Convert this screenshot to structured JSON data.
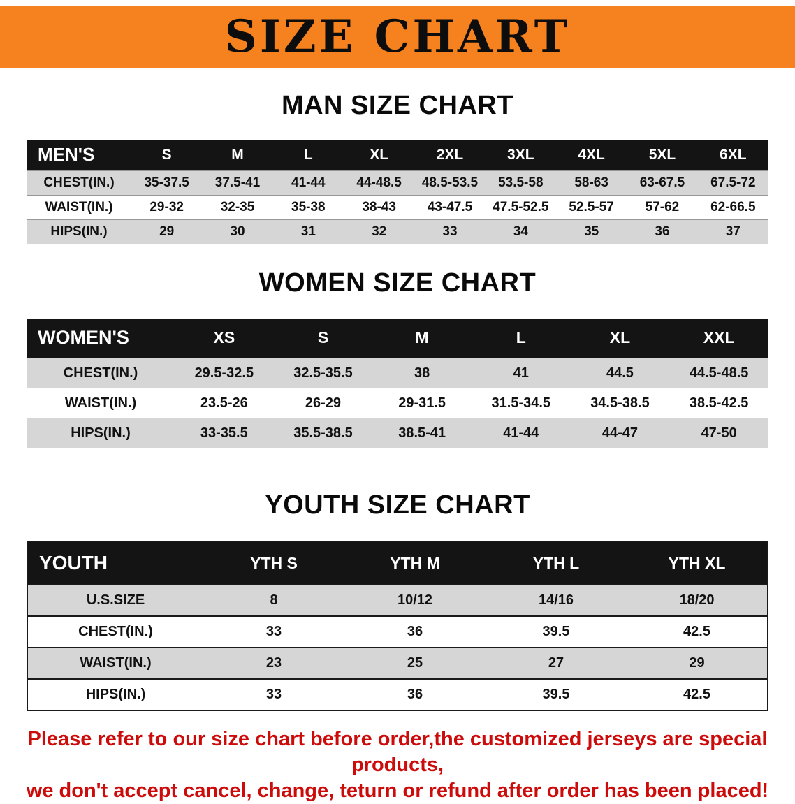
{
  "banner": {
    "title": "SIZE CHART",
    "background_color": "#F5821F"
  },
  "sections": [
    {
      "id": "men",
      "heading": "MAN SIZE CHART",
      "table": {
        "header": [
          "MEN'S",
          "S",
          "M",
          "L",
          "XL",
          "2XL",
          "3XL",
          "4XL",
          "5XL",
          "6XL"
        ],
        "rows": [
          [
            "CHEST(IN.)",
            "35-37.5",
            "37.5-41",
            "41-44",
            "44-48.5",
            "48.5-53.5",
            "53.5-58",
            "58-63",
            "63-67.5",
            "67.5-72"
          ],
          [
            "WAIST(IN.)",
            "29-32",
            "32-35",
            "35-38",
            "38-43",
            "43-47.5",
            "47.5-52.5",
            "52.5-57",
            "57-62",
            "62-66.5"
          ],
          [
            "HIPS(IN.)",
            "29",
            "30",
            "31",
            "32",
            "33",
            "34",
            "35",
            "36",
            "37"
          ]
        ]
      }
    },
    {
      "id": "women",
      "heading": "WOMEN SIZE CHART",
      "table": {
        "header": [
          "WOMEN'S",
          "XS",
          "S",
          "M",
          "L",
          "XL",
          "XXL"
        ],
        "rows": [
          [
            "CHEST(IN.)",
            "29.5-32.5",
            "32.5-35.5",
            "38",
            "41",
            "44.5",
            "44.5-48.5"
          ],
          [
            "WAIST(IN.)",
            "23.5-26",
            "26-29",
            "29-31.5",
            "31.5-34.5",
            "34.5-38.5",
            "38.5-42.5"
          ],
          [
            "HIPS(IN.)",
            "33-35.5",
            "35.5-38.5",
            "38.5-41",
            "41-44",
            "44-47",
            "47-50"
          ]
        ]
      }
    },
    {
      "id": "youth",
      "heading": "YOUTH SIZE CHART",
      "table": {
        "header": [
          "YOUTH",
          "YTH S",
          "YTH M",
          "YTH L",
          "YTH XL"
        ],
        "rows": [
          [
            "U.S.SIZE",
            "8",
            "10/12",
            "14/16",
            "18/20"
          ],
          [
            "CHEST(IN.)",
            "33",
            "36",
            "39.5",
            "42.5"
          ],
          [
            "WAIST(IN.)",
            "23",
            "25",
            "27",
            "29"
          ],
          [
            "HIPS(IN.)",
            "33",
            "36",
            "39.5",
            "42.5"
          ]
        ]
      }
    }
  ],
  "disclaimer": {
    "line1": "Please refer to our size chart before order,the customized jerseys are special products,",
    "line2": "we don't accept cancel, change, teturn or refund after order has been placed!",
    "color": "#CC0B0B"
  }
}
